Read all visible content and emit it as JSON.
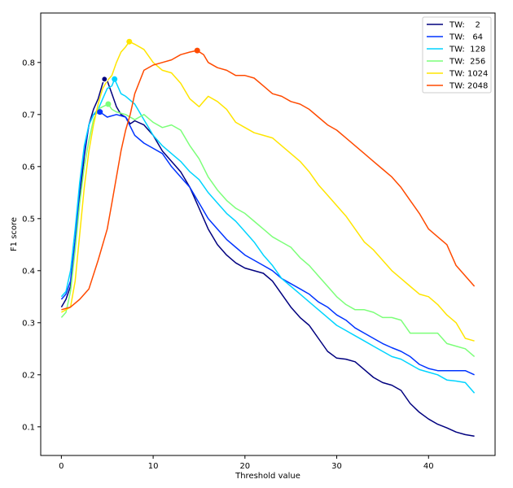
{
  "chart_data": {
    "type": "line",
    "title": "",
    "xlabel": "Threshold value",
    "ylabel": "F1 score",
    "xlim": [
      -2.25,
      47.25
    ],
    "ylim": [
      0.045,
      0.895
    ],
    "x_ticks": [
      0,
      10,
      20,
      30,
      40
    ],
    "y_ticks": [
      0.1,
      0.2,
      0.3,
      0.4,
      0.5,
      0.6,
      0.7,
      0.8
    ],
    "grid": false,
    "legend_position": "top-right",
    "series": [
      {
        "name": "TW:    2",
        "color": "#00007f",
        "marker": {
          "x": 4.7,
          "y": 0.768
        },
        "points": [
          [
            0,
            0.33
          ],
          [
            0.5,
            0.345
          ],
          [
            1,
            0.37
          ],
          [
            1.5,
            0.45
          ],
          [
            2,
            0.54
          ],
          [
            2.5,
            0.62
          ],
          [
            3,
            0.68
          ],
          [
            3.5,
            0.71
          ],
          [
            4,
            0.73
          ],
          [
            4.5,
            0.76
          ],
          [
            4.7,
            0.768
          ],
          [
            5,
            0.765
          ],
          [
            5.5,
            0.74
          ],
          [
            6,
            0.715
          ],
          [
            6.5,
            0.7
          ],
          [
            7,
            0.695
          ],
          [
            7.5,
            0.682
          ],
          [
            8,
            0.688
          ],
          [
            9,
            0.68
          ],
          [
            10,
            0.66
          ],
          [
            11,
            0.63
          ],
          [
            12,
            0.61
          ],
          [
            13,
            0.59
          ],
          [
            14,
            0.56
          ],
          [
            15,
            0.52
          ],
          [
            16,
            0.48
          ],
          [
            17,
            0.45
          ],
          [
            18,
            0.43
          ],
          [
            19,
            0.415
          ],
          [
            20,
            0.405
          ],
          [
            22,
            0.395
          ],
          [
            23,
            0.38
          ],
          [
            24,
            0.355
          ],
          [
            25,
            0.33
          ],
          [
            26,
            0.31
          ],
          [
            27,
            0.295
          ],
          [
            28,
            0.27
          ],
          [
            29,
            0.245
          ],
          [
            30,
            0.232
          ],
          [
            31,
            0.23
          ],
          [
            32,
            0.225
          ],
          [
            33,
            0.21
          ],
          [
            34,
            0.195
          ],
          [
            35,
            0.185
          ],
          [
            36,
            0.18
          ],
          [
            37,
            0.17
          ],
          [
            38,
            0.145
          ],
          [
            39,
            0.128
          ],
          [
            40,
            0.115
          ],
          [
            41,
            0.105
          ],
          [
            42,
            0.098
          ],
          [
            43,
            0.09
          ],
          [
            44,
            0.085
          ],
          [
            45,
            0.082
          ]
        ]
      },
      {
        "name": "TW:   64",
        "color": "#0034ff",
        "marker": {
          "x": 4.2,
          "y": 0.705
        },
        "points": [
          [
            0,
            0.345
          ],
          [
            0.5,
            0.355
          ],
          [
            1,
            0.38
          ],
          [
            1.5,
            0.46
          ],
          [
            2,
            0.56
          ],
          [
            2.5,
            0.63
          ],
          [
            3,
            0.68
          ],
          [
            3.5,
            0.7
          ],
          [
            4.2,
            0.705
          ],
          [
            5,
            0.695
          ],
          [
            6,
            0.7
          ],
          [
            7,
            0.695
          ],
          [
            8,
            0.66
          ],
          [
            9,
            0.645
          ],
          [
            10,
            0.635
          ],
          [
            11,
            0.625
          ],
          [
            12,
            0.6
          ],
          [
            13,
            0.58
          ],
          [
            14,
            0.56
          ],
          [
            15,
            0.53
          ],
          [
            16,
            0.5
          ],
          [
            17,
            0.48
          ],
          [
            18,
            0.46
          ],
          [
            19,
            0.445
          ],
          [
            20,
            0.43
          ],
          [
            21,
            0.42
          ],
          [
            22,
            0.41
          ],
          [
            23,
            0.4
          ],
          [
            24,
            0.385
          ],
          [
            25,
            0.375
          ],
          [
            26,
            0.365
          ],
          [
            27,
            0.355
          ],
          [
            28,
            0.34
          ],
          [
            29,
            0.33
          ],
          [
            30,
            0.315
          ],
          [
            31,
            0.305
          ],
          [
            32,
            0.29
          ],
          [
            33,
            0.28
          ],
          [
            34,
            0.27
          ],
          [
            35,
            0.26
          ],
          [
            36,
            0.252
          ],
          [
            37,
            0.245
          ],
          [
            38,
            0.235
          ],
          [
            39,
            0.22
          ],
          [
            40,
            0.212
          ],
          [
            41,
            0.208
          ],
          [
            42,
            0.208
          ],
          [
            43,
            0.208
          ],
          [
            44,
            0.208
          ],
          [
            45,
            0.2
          ]
        ]
      },
      {
        "name": "TW:  128",
        "color": "#00d4ff",
        "marker": {
          "x": 5.8,
          "y": 0.768
        },
        "points": [
          [
            0,
            0.35
          ],
          [
            0.5,
            0.36
          ],
          [
            1,
            0.4
          ],
          [
            1.5,
            0.48
          ],
          [
            2,
            0.57
          ],
          [
            2.5,
            0.64
          ],
          [
            3,
            0.68
          ],
          [
            3.5,
            0.7
          ],
          [
            4,
            0.71
          ],
          [
            4.5,
            0.73
          ],
          [
            5,
            0.75
          ],
          [
            5.5,
            0.755
          ],
          [
            5.8,
            0.768
          ],
          [
            6,
            0.76
          ],
          [
            6.5,
            0.74
          ],
          [
            7,
            0.735
          ],
          [
            8,
            0.72
          ],
          [
            9,
            0.69
          ],
          [
            10,
            0.66
          ],
          [
            11,
            0.64
          ],
          [
            12,
            0.625
          ],
          [
            13,
            0.61
          ],
          [
            14,
            0.59
          ],
          [
            15,
            0.575
          ],
          [
            16,
            0.55
          ],
          [
            17,
            0.53
          ],
          [
            18,
            0.51
          ],
          [
            19,
            0.495
          ],
          [
            20,
            0.475
          ],
          [
            21,
            0.455
          ],
          [
            22,
            0.43
          ],
          [
            23,
            0.41
          ],
          [
            24,
            0.385
          ],
          [
            25,
            0.37
          ],
          [
            26,
            0.355
          ],
          [
            27,
            0.34
          ],
          [
            28,
            0.325
          ],
          [
            29,
            0.31
          ],
          [
            30,
            0.295
          ],
          [
            31,
            0.285
          ],
          [
            32,
            0.275
          ],
          [
            33,
            0.265
          ],
          [
            34,
            0.255
          ],
          [
            35,
            0.245
          ],
          [
            36,
            0.235
          ],
          [
            37,
            0.23
          ],
          [
            38,
            0.22
          ],
          [
            39,
            0.21
          ],
          [
            40,
            0.205
          ],
          [
            41,
            0.2
          ],
          [
            42,
            0.19
          ],
          [
            43,
            0.188
          ],
          [
            44,
            0.185
          ],
          [
            45,
            0.165
          ]
        ]
      },
      {
        "name": "TW:  256",
        "color": "#7cff79",
        "marker": {
          "x": 5.1,
          "y": 0.72
        },
        "points": [
          [
            0,
            0.31
          ],
          [
            0.5,
            0.32
          ],
          [
            1,
            0.36
          ],
          [
            1.5,
            0.44
          ],
          [
            2,
            0.53
          ],
          [
            2.5,
            0.6
          ],
          [
            3,
            0.65
          ],
          [
            3.5,
            0.69
          ],
          [
            4,
            0.71
          ],
          [
            4.5,
            0.715
          ],
          [
            5.1,
            0.72
          ],
          [
            5.5,
            0.71
          ],
          [
            6,
            0.705
          ],
          [
            7,
            0.7
          ],
          [
            8,
            0.69
          ],
          [
            9,
            0.7
          ],
          [
            10,
            0.685
          ],
          [
            11,
            0.675
          ],
          [
            12,
            0.68
          ],
          [
            13,
            0.67
          ],
          [
            14,
            0.64
          ],
          [
            15,
            0.615
          ],
          [
            16,
            0.58
          ],
          [
            17,
            0.555
          ],
          [
            18,
            0.535
          ],
          [
            19,
            0.52
          ],
          [
            20,
            0.51
          ],
          [
            21,
            0.495
          ],
          [
            22,
            0.48
          ],
          [
            23,
            0.465
          ],
          [
            24,
            0.455
          ],
          [
            25,
            0.445
          ],
          [
            26,
            0.425
          ],
          [
            27,
            0.41
          ],
          [
            28,
            0.39
          ],
          [
            29,
            0.37
          ],
          [
            30,
            0.35
          ],
          [
            31,
            0.335
          ],
          [
            32,
            0.325
          ],
          [
            33,
            0.325
          ],
          [
            34,
            0.32
          ],
          [
            35,
            0.31
          ],
          [
            36,
            0.31
          ],
          [
            37,
            0.305
          ],
          [
            38,
            0.28
          ],
          [
            39,
            0.28
          ],
          [
            40,
            0.28
          ],
          [
            41,
            0.28
          ],
          [
            42,
            0.26
          ],
          [
            43,
            0.255
          ],
          [
            44,
            0.25
          ],
          [
            45,
            0.235
          ]
        ]
      },
      {
        "name": "TW: 1024",
        "color": "#ffe500",
        "marker": {
          "x": 7.4,
          "y": 0.84
        },
        "points": [
          [
            0,
            0.32
          ],
          [
            0.5,
            0.325
          ],
          [
            1,
            0.33
          ],
          [
            1.5,
            0.38
          ],
          [
            2,
            0.47
          ],
          [
            2.5,
            0.56
          ],
          [
            3,
            0.63
          ],
          [
            3.5,
            0.68
          ],
          [
            4,
            0.72
          ],
          [
            4.5,
            0.75
          ],
          [
            5,
            0.765
          ],
          [
            5.5,
            0.775
          ],
          [
            6,
            0.8
          ],
          [
            6.5,
            0.82
          ],
          [
            7,
            0.83
          ],
          [
            7.4,
            0.84
          ],
          [
            8,
            0.835
          ],
          [
            9,
            0.825
          ],
          [
            10,
            0.8
          ],
          [
            11,
            0.785
          ],
          [
            12,
            0.78
          ],
          [
            13,
            0.76
          ],
          [
            14,
            0.73
          ],
          [
            15,
            0.715
          ],
          [
            16,
            0.735
          ],
          [
            17,
            0.725
          ],
          [
            18,
            0.71
          ],
          [
            19,
            0.685
          ],
          [
            20,
            0.675
          ],
          [
            21,
            0.665
          ],
          [
            22,
            0.66
          ],
          [
            23,
            0.655
          ],
          [
            24,
            0.64
          ],
          [
            25,
            0.625
          ],
          [
            26,
            0.61
          ],
          [
            27,
            0.59
          ],
          [
            28,
            0.565
          ],
          [
            29,
            0.545
          ],
          [
            30,
            0.525
          ],
          [
            31,
            0.505
          ],
          [
            32,
            0.48
          ],
          [
            33,
            0.455
          ],
          [
            34,
            0.44
          ],
          [
            35,
            0.42
          ],
          [
            36,
            0.4
          ],
          [
            37,
            0.385
          ],
          [
            38,
            0.37
          ],
          [
            39,
            0.355
          ],
          [
            40,
            0.35
          ],
          [
            41,
            0.335
          ],
          [
            42,
            0.315
          ],
          [
            43,
            0.3
          ],
          [
            44,
            0.27
          ],
          [
            45,
            0.265
          ]
        ]
      },
      {
        "name": "TW: 2048",
        "color": "#ff4a00",
        "marker": {
          "x": 14.8,
          "y": 0.823
        },
        "points": [
          [
            0,
            0.325
          ],
          [
            1,
            0.33
          ],
          [
            2,
            0.345
          ],
          [
            3,
            0.365
          ],
          [
            4,
            0.42
          ],
          [
            5,
            0.48
          ],
          [
            5.5,
            0.53
          ],
          [
            6,
            0.58
          ],
          [
            6.5,
            0.63
          ],
          [
            7,
            0.67
          ],
          [
            7.5,
            0.7
          ],
          [
            8,
            0.74
          ],
          [
            9,
            0.785
          ],
          [
            10,
            0.795
          ],
          [
            11,
            0.8
          ],
          [
            12,
            0.805
          ],
          [
            13,
            0.815
          ],
          [
            14,
            0.82
          ],
          [
            14.8,
            0.823
          ],
          [
            15.5,
            0.815
          ],
          [
            16,
            0.8
          ],
          [
            17,
            0.79
          ],
          [
            18,
            0.785
          ],
          [
            19,
            0.775
          ],
          [
            20,
            0.775
          ],
          [
            21,
            0.77
          ],
          [
            22,
            0.755
          ],
          [
            23,
            0.74
          ],
          [
            24,
            0.735
          ],
          [
            25,
            0.725
          ],
          [
            26,
            0.72
          ],
          [
            27,
            0.71
          ],
          [
            28,
            0.695
          ],
          [
            29,
            0.68
          ],
          [
            30,
            0.67
          ],
          [
            31,
            0.655
          ],
          [
            32,
            0.64
          ],
          [
            33,
            0.625
          ],
          [
            34,
            0.61
          ],
          [
            35,
            0.595
          ],
          [
            36,
            0.58
          ],
          [
            37,
            0.56
          ],
          [
            38,
            0.535
          ],
          [
            39,
            0.51
          ],
          [
            40,
            0.48
          ],
          [
            41,
            0.465
          ],
          [
            42,
            0.45
          ],
          [
            43,
            0.41
          ],
          [
            44,
            0.39
          ],
          [
            45,
            0.37
          ]
        ]
      }
    ]
  }
}
